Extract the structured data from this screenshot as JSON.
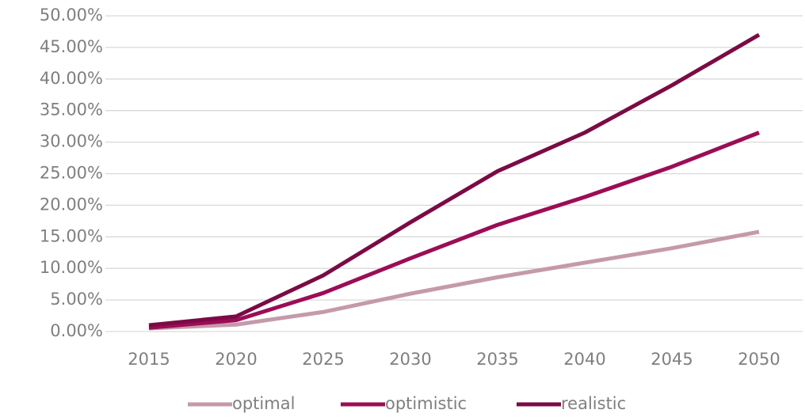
{
  "chart_data": {
    "type": "line",
    "categories": [
      "2015",
      "2020",
      "2025",
      "2030",
      "2035",
      "2040",
      "2045",
      "2050"
    ],
    "series": [
      {
        "name": "optimal",
        "color": "#c49aaa",
        "values": [
          0.5,
          1.1,
          3.1,
          6.0,
          8.6,
          10.9,
          13.2,
          15.8
        ]
      },
      {
        "name": "optimistic",
        "color": "#9b0d55",
        "values": [
          0.6,
          1.8,
          6.1,
          11.6,
          16.9,
          21.3,
          26.1,
          31.5
        ]
      },
      {
        "name": "realistic",
        "color": "#7b0a45",
        "values": [
          1.0,
          2.4,
          8.9,
          17.3,
          25.4,
          31.5,
          39.0,
          47.0
        ]
      }
    ],
    "ylim": [
      0,
      50
    ],
    "yticks": [
      {
        "value": 0,
        "label": "0.00%"
      },
      {
        "value": 5,
        "label": "5.00%"
      },
      {
        "value": 10,
        "label": "10.00%"
      },
      {
        "value": 15,
        "label": "15.00%"
      },
      {
        "value": 20,
        "label": "20.00%"
      },
      {
        "value": 25,
        "label": "25.00%"
      },
      {
        "value": 30,
        "label": "30.00%"
      },
      {
        "value": 35,
        "label": "35.00%"
      },
      {
        "value": 40,
        "label": "40.00%"
      },
      {
        "value": 45,
        "label": "45.00%"
      },
      {
        "value": 50,
        "label": "50.00%"
      }
    ],
    "grid": true,
    "legend": "bottom"
  }
}
